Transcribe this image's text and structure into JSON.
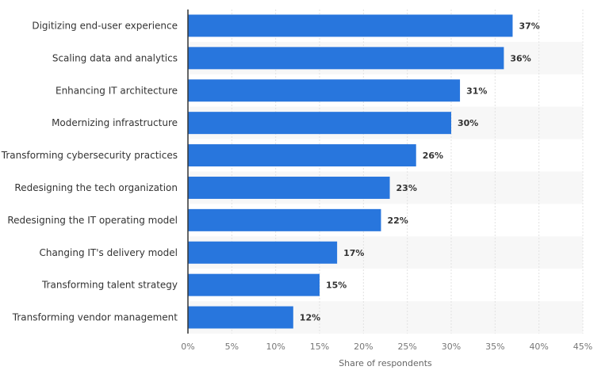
{
  "chart_data": {
    "type": "bar",
    "orientation": "horizontal",
    "categories": [
      "Digitizing end-user experience",
      "Scaling data and analytics",
      "Enhancing IT architecture",
      "Modernizing infrastructure",
      "Transforming cybersecurity practices",
      "Redesigning the tech organization",
      "Redesigning the IT operating model",
      "Changing IT's delivery model",
      "Transforming talent strategy",
      "Transforming vendor management"
    ],
    "values": [
      37,
      36,
      31,
      30,
      26,
      23,
      22,
      17,
      15,
      12
    ],
    "data_labels": [
      "37%",
      "36%",
      "31%",
      "30%",
      "26%",
      "23%",
      "22%",
      "17%",
      "15%",
      "12%"
    ],
    "xlabel": "Share of respondents",
    "ylabel": "",
    "xlim": [
      0,
      45
    ],
    "ticks": [
      0,
      5,
      10,
      15,
      20,
      25,
      30,
      35,
      40,
      45
    ],
    "tick_labels": [
      "0%",
      "5%",
      "10%",
      "15%",
      "20%",
      "25%",
      "30%",
      "35%",
      "40%",
      "45%"
    ],
    "grid": true,
    "colors": {
      "bar": "#2876dd",
      "band": "#f7f7f7",
      "grid": "#e2e2e2",
      "axis": "#333333"
    }
  }
}
